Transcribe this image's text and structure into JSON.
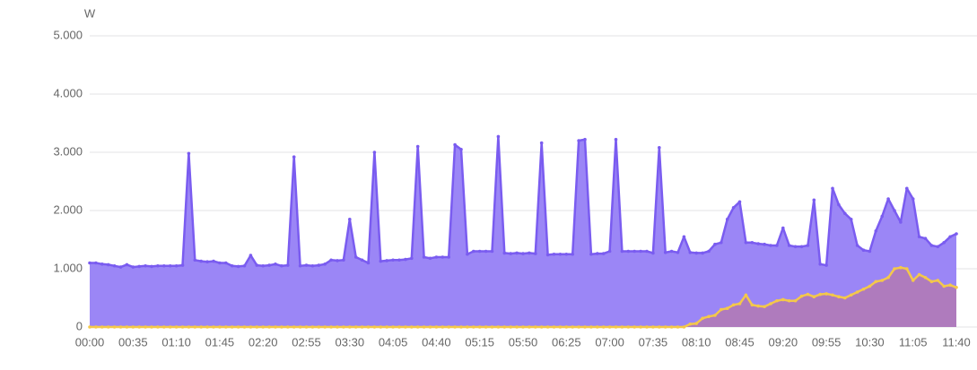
{
  "chart_data": {
    "type": "area",
    "y_unit": "W",
    "categories": [
      "00:00",
      null,
      null,
      null,
      null,
      null,
      null,
      "00:35",
      null,
      null,
      null,
      null,
      null,
      null,
      "01:10",
      null,
      null,
      null,
      null,
      null,
      null,
      "01:45",
      null,
      null,
      null,
      null,
      null,
      null,
      "02:20",
      null,
      null,
      null,
      null,
      null,
      null,
      "02:55",
      null,
      null,
      null,
      null,
      null,
      null,
      "03:30",
      null,
      null,
      null,
      null,
      null,
      null,
      "04:05",
      null,
      null,
      null,
      null,
      null,
      null,
      "04:40",
      null,
      null,
      null,
      null,
      null,
      null,
      "05:15",
      null,
      null,
      null,
      null,
      null,
      null,
      "05:50",
      null,
      null,
      null,
      null,
      null,
      null,
      "06:25",
      null,
      null,
      null,
      null,
      null,
      null,
      "07:00",
      null,
      null,
      null,
      null,
      null,
      null,
      "07:35",
      null,
      null,
      null,
      null,
      null,
      null,
      "08:10",
      null,
      null,
      null,
      null,
      null,
      null,
      "08:45",
      null,
      null,
      null,
      null,
      null,
      null,
      "09:20",
      null,
      null,
      null,
      null,
      null,
      null,
      "09:55",
      null,
      null,
      null,
      null,
      null,
      null,
      "10:30",
      null,
      null,
      null,
      null,
      null,
      null,
      "11:05",
      null,
      null,
      null,
      null,
      null,
      null,
      "11:40"
    ],
    "series": [
      {
        "color": "#7a5cf0",
        "fill": "#9b86f6",
        "values": [
          1100,
          1100,
          1080,
          1070,
          1050,
          1030,
          1070,
          1030,
          1040,
          1050,
          1040,
          1050,
          1050,
          1050,
          1050,
          1060,
          2980,
          1150,
          1130,
          1120,
          1130,
          1100,
          1100,
          1050,
          1040,
          1050,
          1230,
          1060,
          1050,
          1060,
          1080,
          1050,
          1060,
          2920,
          1050,
          1060,
          1050,
          1060,
          1080,
          1150,
          1140,
          1150,
          1850,
          1200,
          1150,
          1100,
          3000,
          1130,
          1140,
          1150,
          1150,
          1160,
          1180,
          3100,
          1200,
          1180,
          1200,
          1200,
          1200,
          3130,
          3050,
          1250,
          1300,
          1300,
          1300,
          1300,
          3270,
          1270,
          1260,
          1270,
          1260,
          1270,
          1260,
          3160,
          1240,
          1250,
          1250,
          1250,
          1250,
          3200,
          3220,
          1250,
          1260,
          1260,
          1300,
          3220,
          1300,
          1300,
          1300,
          1300,
          1300,
          1270,
          3080,
          1280,
          1300,
          1280,
          1550,
          1280,
          1270,
          1270,
          1300,
          1420,
          1450,
          1850,
          2050,
          2150,
          1450,
          1450,
          1430,
          1420,
          1400,
          1400,
          1700,
          1400,
          1380,
          1380,
          1400,
          2180,
          1080,
          1060,
          2380,
          2100,
          1950,
          1850,
          1400,
          1320,
          1300,
          1650,
          1900,
          2200,
          2000,
          1800,
          2380,
          2200,
          1550,
          1520,
          1400,
          1380,
          1450,
          1550,
          1600
        ]
      },
      {
        "color": "#f4c84a",
        "fill": "rgba(200,110,120,0.45)",
        "values": [
          0,
          0,
          0,
          0,
          0,
          0,
          0,
          0,
          0,
          0,
          0,
          0,
          0,
          0,
          0,
          0,
          0,
          0,
          0,
          0,
          0,
          0,
          0,
          0,
          0,
          0,
          0,
          0,
          0,
          0,
          0,
          0,
          0,
          0,
          0,
          0,
          0,
          0,
          0,
          0,
          0,
          0,
          0,
          0,
          0,
          0,
          0,
          0,
          0,
          0,
          0,
          0,
          0,
          0,
          0,
          0,
          0,
          0,
          0,
          0,
          0,
          0,
          0,
          0,
          0,
          0,
          0,
          0,
          0,
          0,
          0,
          0,
          0,
          0,
          0,
          0,
          0,
          0,
          0,
          0,
          0,
          0,
          0,
          0,
          0,
          0,
          0,
          0,
          0,
          0,
          0,
          0,
          0,
          0,
          0,
          0,
          0,
          50,
          60,
          150,
          180,
          200,
          300,
          320,
          380,
          400,
          550,
          380,
          360,
          350,
          400,
          450,
          470,
          450,
          450,
          530,
          560,
          520,
          560,
          570,
          550,
          520,
          500,
          550,
          600,
          650,
          700,
          780,
          800,
          850,
          1000,
          1020,
          1000,
          800,
          900,
          850,
          780,
          800,
          700,
          720,
          680
        ]
      }
    ],
    "ylim": [
      0,
      5000
    ],
    "yticks": [
      0,
      {
        "value": 1000,
        "label": "1.000"
      },
      {
        "value": 2000,
        "label": "2.000"
      },
      {
        "value": 3000,
        "label": "3.000"
      },
      {
        "value": 4000,
        "label": "4.000"
      },
      {
        "value": 5000,
        "label": "5.000"
      }
    ],
    "grid": true
  }
}
